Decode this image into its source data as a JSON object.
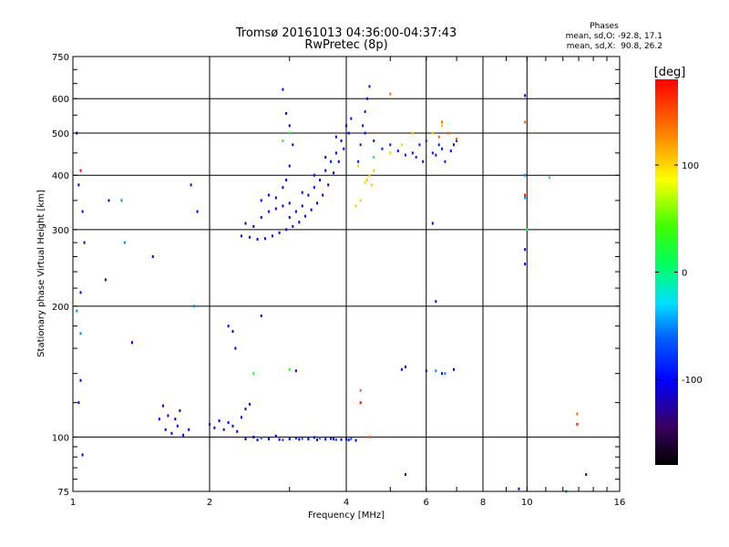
{
  "chart_data": {
    "type": "scatter",
    "title": "Tromsø 20161013 04:36:00-04:37:43",
    "subtitle": "RwPretec (8p)",
    "xlabel": "Frequency [MHz]",
    "ylabel": "Stationary phase Virtual Height [km]",
    "x_scale": "log",
    "y_scale": "log",
    "xlim": [
      1,
      16
    ],
    "ylim": [
      75,
      750
    ],
    "x_ticks": [
      1,
      2,
      4,
      6,
      8,
      10,
      16
    ],
    "x_tick_labels": [
      "1",
      "2",
      "4",
      "6",
      "8",
      "10",
      "16"
    ],
    "y_ticks": [
      75,
      100,
      200,
      300,
      400,
      500,
      600,
      750
    ],
    "y_tick_labels": [
      "75",
      "100",
      "200",
      "300",
      "400",
      "500",
      "600",
      "750"
    ],
    "x_grid": [
      1,
      2,
      4,
      6,
      8,
      10
    ],
    "y_grid": [
      100,
      200,
      300,
      400,
      500,
      600
    ],
    "grid": true,
    "phases": {
      "heading": "Phases",
      "line_o": "mean, sd,O: -92.8, 17.1",
      "line_x": "mean, sd,X:  90.8, 26.2"
    },
    "colorbar": {
      "label": "[deg]",
      "range": [
        -180,
        180
      ],
      "ticks": [
        100,
        0,
        -100
      ],
      "tick_labels": [
        "100",
        "0",
        "-100"
      ]
    },
    "clusters": [
      {
        "name": "F2 trace",
        "phase": -100,
        "points": [
          [
            2.35,
            290
          ],
          [
            2.45,
            288
          ],
          [
            2.55,
            285
          ],
          [
            2.65,
            286
          ],
          [
            2.75,
            290
          ],
          [
            2.85,
            295
          ],
          [
            2.95,
            300
          ],
          [
            3.05,
            305
          ],
          [
            3.15,
            312
          ],
          [
            3.25,
            322
          ],
          [
            3.35,
            333
          ],
          [
            3.45,
            345
          ],
          [
            3.55,
            360
          ],
          [
            3.65,
            380
          ],
          [
            3.75,
            405
          ],
          [
            3.85,
            430
          ],
          [
            3.95,
            460
          ],
          [
            4.05,
            500
          ],
          [
            4.1,
            540
          ],
          [
            2.4,
            310
          ],
          [
            2.5,
            305
          ],
          [
            2.6,
            320
          ],
          [
            2.7,
            330
          ],
          [
            2.8,
            335
          ],
          [
            2.9,
            340
          ],
          [
            3.0,
            320
          ],
          [
            3.1,
            330
          ],
          [
            3.2,
            340
          ],
          [
            3.3,
            360
          ],
          [
            3.4,
            375
          ],
          [
            3.5,
            390
          ],
          [
            3.6,
            410
          ],
          [
            3.7,
            430
          ],
          [
            3.8,
            450
          ],
          [
            3.9,
            480
          ],
          [
            4.0,
            520
          ],
          [
            2.6,
            350
          ],
          [
            2.7,
            360
          ],
          [
            2.8,
            355
          ],
          [
            3.0,
            345
          ],
          [
            3.2,
            365
          ],
          [
            3.4,
            400
          ],
          [
            3.6,
            440
          ],
          [
            3.8,
            490
          ],
          [
            2.9,
            375
          ],
          [
            2.95,
            390
          ],
          [
            3.0,
            420
          ],
          [
            3.05,
            470
          ],
          [
            3.0,
            520
          ],
          [
            2.95,
            555
          ],
          [
            2.9,
            630
          ]
        ]
      },
      {
        "name": "F2 upper trace",
        "phase": -90,
        "points": [
          [
            4.3,
            470
          ],
          [
            4.35,
            520
          ],
          [
            4.4,
            560
          ],
          [
            4.45,
            600
          ],
          [
            4.5,
            640
          ],
          [
            4.25,
            430
          ],
          [
            4.4,
            500
          ],
          [
            4.6,
            480
          ],
          [
            4.8,
            460
          ],
          [
            5.0,
            470
          ],
          [
            5.2,
            455
          ],
          [
            5.4,
            445
          ],
          [
            5.6,
            450
          ],
          [
            5.8,
            470
          ],
          [
            6.0,
            480
          ],
          [
            6.2,
            450
          ],
          [
            6.3,
            445
          ],
          [
            6.4,
            470
          ],
          [
            6.6,
            430
          ],
          [
            6.8,
            455
          ],
          [
            6.9,
            470
          ],
          [
            7.0,
            480
          ],
          [
            6.5,
            460
          ],
          [
            5.9,
            430
          ],
          [
            5.7,
            440
          ]
        ]
      },
      {
        "name": "E trace",
        "phase": -100,
        "points": [
          [
            2.4,
            99
          ],
          [
            2.55,
            98.5
          ],
          [
            2.7,
            99
          ],
          [
            2.85,
            98.7
          ],
          [
            3.0,
            99
          ],
          [
            3.15,
            98.8
          ],
          [
            3.3,
            99
          ],
          [
            3.45,
            98.6
          ],
          [
            3.6,
            98.9
          ],
          [
            3.75,
            99
          ],
          [
            3.9,
            98.7
          ],
          [
            4.05,
            98.5
          ],
          [
            4.2,
            98.3
          ],
          [
            2.5,
            100
          ],
          [
            2.8,
            100.5
          ],
          [
            3.1,
            99.5
          ],
          [
            3.4,
            99.8
          ],
          [
            3.7,
            99.2
          ],
          [
            4.0,
            98.9
          ]
        ]
      },
      {
        "name": "E cyan mix",
        "phase": -60,
        "points": [
          [
            2.6,
            99.5
          ],
          [
            2.9,
            98.5
          ],
          [
            3.2,
            99.2
          ],
          [
            3.5,
            99.4
          ],
          [
            3.8,
            98.6
          ],
          [
            4.1,
            99.1
          ]
        ]
      },
      {
        "name": "Es cluster",
        "phase": -105,
        "points": [
          [
            1.6,
            104
          ],
          [
            1.65,
            102
          ],
          [
            1.7,
            106
          ],
          [
            1.75,
            101
          ],
          [
            1.8,
            104
          ],
          [
            1.62,
            112
          ],
          [
            1.68,
            110
          ],
          [
            1.72,
            115
          ],
          [
            1.58,
            118
          ],
          [
            1.55,
            110
          ],
          [
            2.0,
            107
          ],
          [
            2.05,
            105
          ],
          [
            2.1,
            109
          ],
          [
            2.15,
            104
          ],
          [
            2.2,
            108
          ],
          [
            2.25,
            106
          ],
          [
            2.3,
            103
          ],
          [
            2.35,
            111
          ],
          [
            2.4,
            116
          ],
          [
            2.45,
            119
          ]
        ]
      },
      {
        "name": "yellow upper",
        "phase": 105,
        "points": [
          [
            4.45,
            390
          ],
          [
            4.5,
            400
          ],
          [
            4.55,
            380
          ],
          [
            4.6,
            410
          ],
          [
            4.4,
            385
          ],
          [
            4.25,
            420
          ],
          [
            4.2,
            340
          ],
          [
            4.3,
            350
          ],
          [
            5.0,
            450
          ],
          [
            5.3,
            470
          ],
          [
            5.6,
            500
          ],
          [
            6.2,
            500
          ],
          [
            6.5,
            520
          ]
        ]
      },
      {
        "name": "orange points",
        "phase": 140,
        "points": [
          [
            6.4,
            490
          ],
          [
            6.7,
            500
          ],
          [
            7.0,
            485
          ],
          [
            6.5,
            530
          ],
          [
            5.0,
            615
          ],
          [
            4.5,
            100
          ],
          [
            4.3,
            128
          ],
          [
            9.9,
            530
          ],
          [
            12.9,
            113
          ]
        ]
      },
      {
        "name": "green points",
        "phase": 20,
        "points": [
          [
            3.0,
            500
          ],
          [
            2.9,
            480
          ],
          [
            2.5,
            140
          ],
          [
            3.0,
            143
          ],
          [
            4.6,
            440
          ],
          [
            11.2,
            395
          ],
          [
            10.0,
            300
          ]
        ]
      },
      {
        "name": "scattered blue",
        "phase": -110,
        "points": [
          [
            1.02,
            500
          ],
          [
            1.03,
            380
          ],
          [
            1.05,
            330
          ],
          [
            1.06,
            280
          ],
          [
            1.04,
            215
          ],
          [
            1.2,
            350
          ],
          [
            1.18,
            230
          ],
          [
            1.35,
            165
          ],
          [
            1.5,
            260
          ],
          [
            1.82,
            380
          ],
          [
            1.88,
            330
          ],
          [
            2.2,
            180
          ],
          [
            2.25,
            175
          ],
          [
            2.28,
            160
          ],
          [
            2.6,
            190
          ],
          [
            3.1,
            142
          ],
          [
            5.3,
            143
          ],
          [
            5.4,
            145
          ],
          [
            6.0,
            142
          ],
          [
            6.5,
            140
          ],
          [
            6.9,
            143
          ],
          [
            5.4,
            82
          ],
          [
            6.2,
            310
          ],
          [
            6.3,
            205
          ],
          [
            9.9,
            610
          ],
          [
            9.9,
            270
          ],
          [
            9.9,
            250
          ],
          [
            9.6,
            76
          ],
          [
            13.5,
            82
          ],
          [
            1.05,
            91
          ],
          [
            1.03,
            120
          ],
          [
            1.04,
            135
          ]
        ]
      },
      {
        "name": "cyan scattered",
        "phase": -50,
        "points": [
          [
            1.02,
            195
          ],
          [
            1.04,
            173
          ],
          [
            1.28,
            350
          ],
          [
            1.3,
            280
          ],
          [
            1.85,
            200
          ],
          [
            9.9,
            355
          ],
          [
            9.9,
            400
          ],
          [
            6.6,
            140
          ],
          [
            6.3,
            142
          ],
          [
            12.2,
            75
          ]
        ]
      },
      {
        "name": "red points",
        "phase": 175,
        "points": [
          [
            1.04,
            410
          ],
          [
            4.3,
            120
          ],
          [
            12.9,
            107
          ],
          [
            9.9,
            360
          ]
        ]
      }
    ]
  }
}
